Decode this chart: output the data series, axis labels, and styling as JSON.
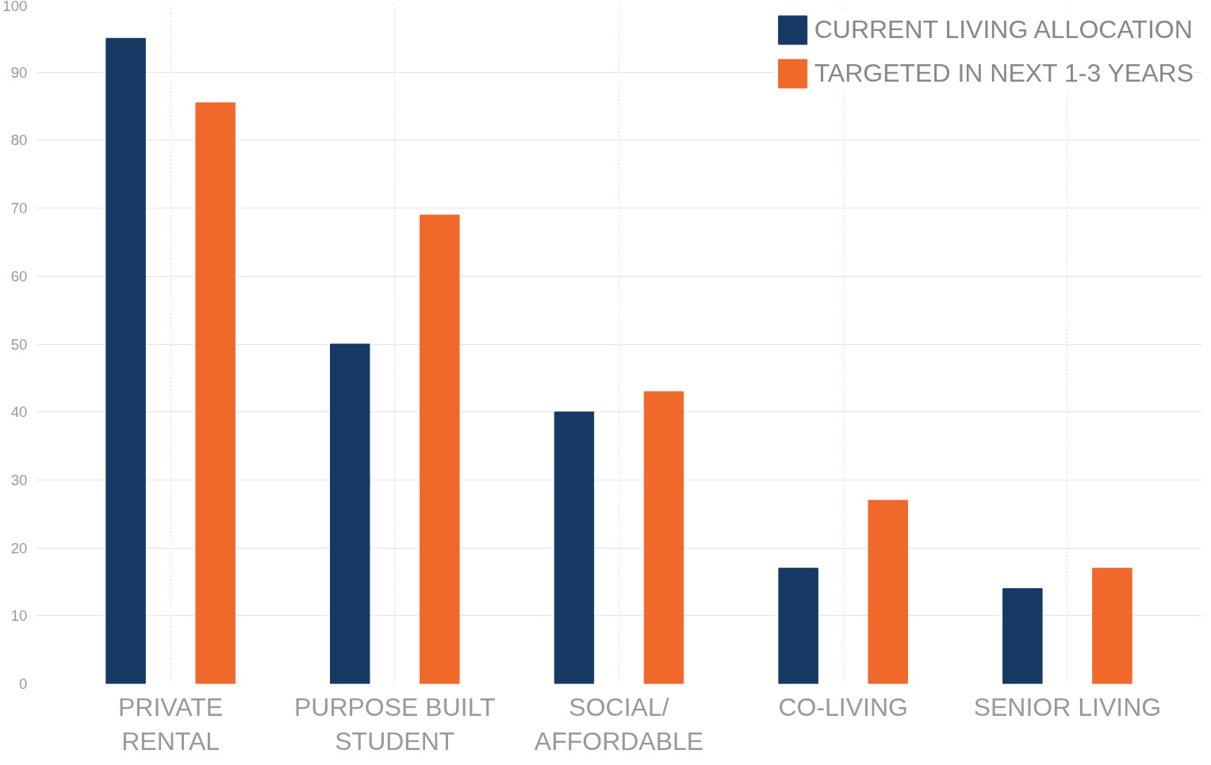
{
  "chart_data": {
    "type": "bar",
    "categories": [
      "PRIVATE\nRENTAL",
      "PURPOSE BUILT\nSTUDENT",
      "SOCIAL/\nAFFORDABLE",
      "CO-LIVING",
      "SENIOR LIVING"
    ],
    "series": [
      {
        "name": "CURRENT LIVING ALLOCATION",
        "color": "#173a64",
        "values": [
          95,
          50,
          40,
          17,
          14
        ]
      },
      {
        "name": "TARGETED IN NEXT 1-3 YEARS",
        "color": "#f0692a",
        "values": [
          85.5,
          69,
          43,
          27,
          17
        ]
      }
    ],
    "ylim": [
      0,
      100
    ],
    "yticks": [
      0,
      10,
      20,
      30,
      40,
      50,
      60,
      70,
      80,
      90,
      100
    ],
    "grid": true,
    "legend": "top right"
  }
}
